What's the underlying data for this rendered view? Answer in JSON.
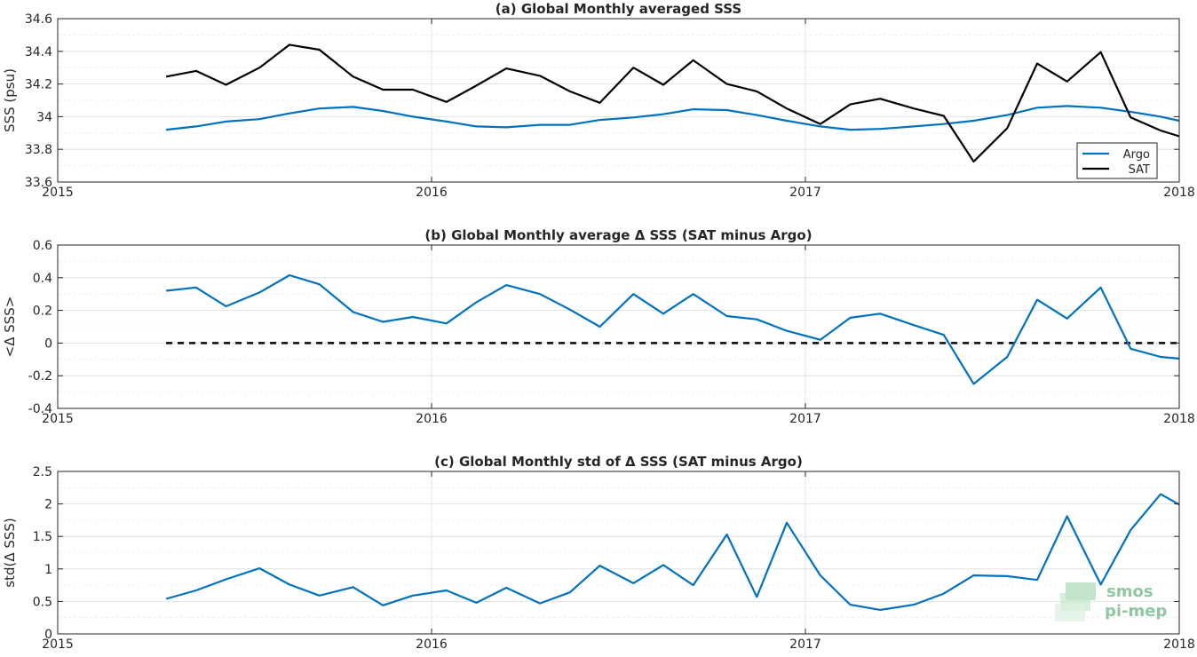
{
  "chart_data": [
    {
      "type": "line",
      "title": "(a) Global Monthly averaged SSS",
      "xlabel": "",
      "ylabel": "SSS (psu)",
      "xlim": [
        2015,
        2018
      ],
      "ylim": [
        33.6,
        34.6
      ],
      "xticks": [
        2015,
        2016,
        2017,
        2018
      ],
      "yticks": [
        33.6,
        33.8,
        34.0,
        34.2,
        34.4,
        34.6
      ],
      "ytick_labels": [
        "33.6",
        "33.8",
        "34",
        "34.2",
        "34.4",
        "34.6"
      ],
      "grid": true,
      "legend": "bottom-right",
      "x": [
        2015.29,
        2015.37,
        2015.45,
        2015.54,
        2015.62,
        2015.7,
        2015.79,
        2015.87,
        2015.95,
        2016.04,
        2016.12,
        2016.2,
        2016.29,
        2016.37,
        2016.45,
        2016.54,
        2016.62,
        2016.7,
        2016.79,
        2016.87,
        2016.95,
        2017.04,
        2017.12,
        2017.2,
        2017.29,
        2017.37,
        2017.45,
        2017.54,
        2017.62,
        2017.7,
        2017.79,
        2017.87,
        2017.95,
        2018.0
      ],
      "series": [
        {
          "name": "Argo",
          "color": "#0072bd",
          "values": [
            33.92,
            33.94,
            33.97,
            33.985,
            34.02,
            34.05,
            34.06,
            34.035,
            34.0,
            33.97,
            33.94,
            33.935,
            33.95,
            33.95,
            33.98,
            33.995,
            34.015,
            34.045,
            34.04,
            34.01,
            33.975,
            33.94,
            33.92,
            33.925,
            33.94,
            33.955,
            33.975,
            34.01,
            34.055,
            34.065,
            34.055,
            34.03,
            34.0,
            33.975
          ]
        },
        {
          "name": "SAT",
          "color": "#000000",
          "values": [
            34.245,
            34.28,
            34.195,
            34.3,
            34.44,
            34.41,
            34.245,
            34.165,
            34.165,
            34.09,
            34.19,
            34.295,
            34.25,
            34.155,
            34.085,
            34.3,
            34.195,
            34.345,
            34.2,
            34.155,
            34.05,
            33.955,
            34.075,
            34.11,
            34.05,
            34.005,
            33.725,
            33.93,
            34.325,
            34.215,
            34.395,
            33.995,
            33.915,
            33.88
          ]
        }
      ]
    },
    {
      "type": "line",
      "title": "(b) Global Monthly average Δ SSS (SAT minus Argo)",
      "xlabel": "",
      "ylabel": "<Δ SSS>",
      "xlim": [
        2015,
        2018
      ],
      "ylim": [
        -0.4,
        0.6
      ],
      "xticks": [
        2015,
        2016,
        2017,
        2018
      ],
      "yticks": [
        -0.4,
        -0.2,
        0,
        0.2,
        0.4,
        0.6
      ],
      "ytick_labels": [
        "-0.4",
        "-0.2",
        "0",
        "0.2",
        "0.4",
        "0.6"
      ],
      "grid": true,
      "reference_line": {
        "y": 0,
        "color": "#000000",
        "style": "dashed"
      },
      "x": [
        2015.29,
        2015.37,
        2015.45,
        2015.54,
        2015.62,
        2015.7,
        2015.79,
        2015.87,
        2015.95,
        2016.04,
        2016.12,
        2016.2,
        2016.29,
        2016.37,
        2016.45,
        2016.54,
        2016.62,
        2016.7,
        2016.79,
        2016.87,
        2016.95,
        2017.04,
        2017.12,
        2017.2,
        2017.29,
        2017.37,
        2017.45,
        2017.54,
        2017.62,
        2017.7,
        2017.79,
        2017.87,
        2017.95,
        2018.0
      ],
      "series": [
        {
          "name": "",
          "color": "#0072bd",
          "values": [
            0.32,
            0.34,
            0.225,
            0.31,
            0.415,
            0.36,
            0.19,
            0.13,
            0.16,
            0.12,
            0.25,
            0.355,
            0.3,
            0.205,
            0.1,
            0.3,
            0.18,
            0.3,
            0.165,
            0.145,
            0.075,
            0.02,
            0.155,
            0.18,
            0.11,
            0.05,
            -0.25,
            -0.085,
            0.265,
            0.15,
            0.34,
            -0.035,
            -0.085,
            -0.095
          ]
        }
      ]
    },
    {
      "type": "line",
      "title": "(c) Global Monthly std of Δ SSS (SAT minus Argo)",
      "xlabel": "",
      "ylabel": "std(Δ SSS)",
      "xlim": [
        2015,
        2018
      ],
      "ylim": [
        0,
        2.5
      ],
      "xticks": [
        2015,
        2016,
        2017,
        2018
      ],
      "yticks": [
        0,
        0.5,
        1,
        1.5,
        2,
        2.5
      ],
      "ytick_labels": [
        "0",
        "0.5",
        "1",
        "1.5",
        "2",
        "2.5"
      ],
      "grid": true,
      "x": [
        2015.29,
        2015.37,
        2015.45,
        2015.54,
        2015.62,
        2015.7,
        2015.79,
        2015.87,
        2015.95,
        2016.04,
        2016.12,
        2016.2,
        2016.29,
        2016.37,
        2016.45,
        2016.54,
        2016.62,
        2016.7,
        2016.79,
        2016.87,
        2016.95,
        2017.04,
        2017.12,
        2017.2,
        2017.29,
        2017.37,
        2017.45,
        2017.54,
        2017.62,
        2017.7,
        2017.79,
        2017.87,
        2017.95,
        2018.0
      ],
      "series": [
        {
          "name": "",
          "color": "#0072bd",
          "values": [
            0.54,
            0.67,
            0.84,
            1.01,
            0.76,
            0.59,
            0.72,
            0.44,
            0.59,
            0.67,
            0.48,
            0.71,
            0.47,
            0.64,
            1.05,
            0.78,
            1.06,
            0.75,
            1.53,
            0.57,
            1.71,
            0.9,
            0.45,
            0.37,
            0.45,
            0.62,
            0.9,
            0.89,
            0.83,
            1.81,
            0.76,
            1.6,
            2.15,
            1.99
          ]
        }
      ]
    }
  ],
  "logo": {
    "line1": "smos",
    "line2": "pi-mep"
  }
}
